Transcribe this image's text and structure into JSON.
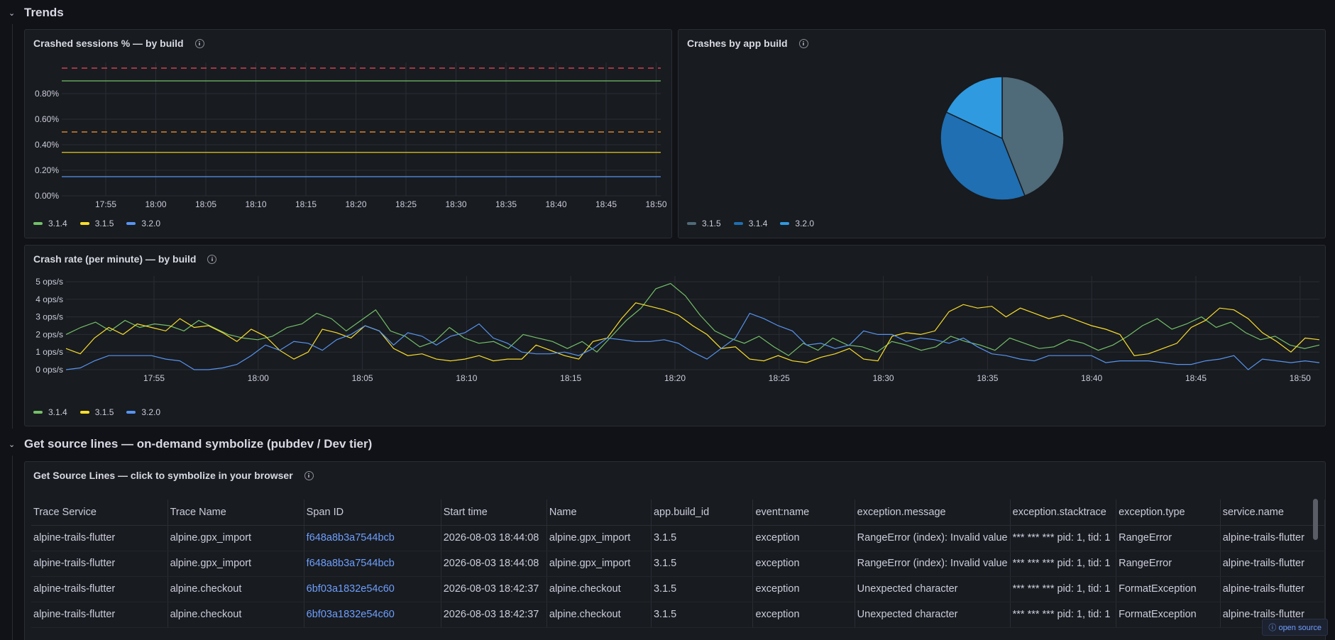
{
  "rows": [
    {
      "title": "Trends"
    },
    {
      "title": "Get source lines — on-demand symbolize (pubdev / Dev tier)"
    }
  ],
  "panels": {
    "crashed_sessions": {
      "title": "Crashed sessions % — by build",
      "legend": [
        {
          "name": "3.1.4",
          "color": "#73bf69"
        },
        {
          "name": "3.1.5",
          "color": "#fade2a"
        },
        {
          "name": "3.2.0",
          "color": "#5794f2"
        }
      ]
    },
    "crashes_by_build": {
      "title": "Crashes by app build",
      "legend": [
        {
          "name": "3.1.5",
          "color": "#4f6a78"
        },
        {
          "name": "3.1.4",
          "color": "#1f6fb2"
        },
        {
          "name": "3.2.0",
          "color": "#2f9ae0"
        }
      ]
    },
    "crash_rate": {
      "title": "Crash rate (per minute) — by build",
      "legend": [
        {
          "name": "3.1.4",
          "color": "#73bf69"
        },
        {
          "name": "3.1.5",
          "color": "#fade2a"
        },
        {
          "name": "3.2.0",
          "color": "#5794f2"
        }
      ]
    },
    "source_lines": {
      "title": "Get Source Lines — click to symbolize in your browser",
      "columns": [
        "Trace Service",
        "Trace Name",
        "Span ID",
        "Start time",
        "Name",
        "app.build_id",
        "event:name",
        "exception.message",
        "exception.stacktrace",
        "exception.type",
        "service.name"
      ],
      "rows": [
        [
          "alpine-trails-flutter",
          "alpine.gpx_import",
          "f648a8b3a7544bcb",
          "2026-08-03 18:44:08",
          "alpine.gpx_import",
          "3.1.5",
          "exception",
          "RangeError (index): Invalid value",
          "*** *** *** pid: 1, tid: 1",
          "RangeError",
          "alpine-trails-flutter"
        ],
        [
          "alpine-trails-flutter",
          "alpine.gpx_import",
          "f648a8b3a7544bcb",
          "2026-08-03 18:44:08",
          "alpine.gpx_import",
          "3.1.5",
          "exception",
          "RangeError (index): Invalid value",
          "*** *** *** pid: 1, tid: 1",
          "RangeError",
          "alpine-trails-flutter"
        ],
        [
          "alpine-trails-flutter",
          "alpine.checkout",
          "6bf03a1832e54c60",
          "2026-08-03 18:42:37",
          "alpine.checkout",
          "3.1.5",
          "exception",
          "Unexpected character",
          "*** *** *** pid: 1, tid: 1",
          "FormatException",
          "alpine-trails-flutter"
        ],
        [
          "alpine-trails-flutter",
          "alpine.checkout",
          "6bf03a1832e54c60",
          "2026-08-03 18:42:37",
          "alpine.checkout",
          "3.1.5",
          "exception",
          "Unexpected character",
          "*** *** *** pid: 1, tid: 1",
          "FormatException",
          "alpine-trails-flutter"
        ]
      ]
    }
  },
  "footer": {
    "open_source": "ⓘ open source"
  },
  "chart_data": [
    {
      "type": "line",
      "title": "Crashed sessions % — by build",
      "x_ticks": [
        "17:55",
        "18:00",
        "18:05",
        "18:10",
        "18:15",
        "18:20",
        "18:25",
        "18:30",
        "18:35",
        "18:40",
        "18:45",
        "18:50"
      ],
      "y_ticks": [
        "0.00%",
        "0.20%",
        "0.40%",
        "0.60%",
        "0.80%"
      ],
      "ylim": [
        0,
        1.0
      ],
      "thresholds": [
        {
          "value": 0.5,
          "color": "#ff9830"
        },
        {
          "value": 1.0,
          "color": "#f2495c"
        }
      ],
      "series": [
        {
          "name": "3.1.4",
          "color": "#73bf69",
          "values": [
            0.9,
            0.9
          ]
        },
        {
          "name": "3.1.5",
          "color": "#fade2a",
          "values": [
            0.34,
            0.34
          ]
        },
        {
          "name": "3.2.0",
          "color": "#5794f2",
          "values": [
            0.15,
            0.15
          ]
        }
      ],
      "grid": true,
      "legend": "bottom-left"
    },
    {
      "type": "pie",
      "title": "Crashes by app build",
      "categories": [
        "3.1.5",
        "3.1.4",
        "3.2.0"
      ],
      "values": [
        44,
        38,
        18
      ],
      "colors": [
        "#4f6a78",
        "#1f6fb2",
        "#2f9ae0"
      ],
      "legend": "bottom-left"
    },
    {
      "type": "line",
      "title": "Crash rate (per minute) — by build",
      "x_ticks": [
        "17:55",
        "18:00",
        "18:05",
        "18:10",
        "18:15",
        "18:20",
        "18:25",
        "18:30",
        "18:35",
        "18:40",
        "18:45",
        "18:50"
      ],
      "y_ticks": [
        "0 ops/s",
        "1 ops/s",
        "2 ops/s",
        "3 ops/s",
        "4 ops/s",
        "5 ops/s"
      ],
      "ylim": [
        0,
        5
      ],
      "series": [
        {
          "name": "3.1.4",
          "color": "#73bf69",
          "values": [
            2.0,
            2.4,
            2.7,
            2.2,
            2.8,
            2.4,
            2.6,
            2.5,
            2.2,
            2.8,
            2.4,
            2.0,
            1.8,
            1.7,
            1.9,
            2.4,
            2.6,
            3.2,
            2.9,
            2.2,
            2.8,
            3.4,
            2.2,
            1.9,
            1.3,
            1.6,
            2.4,
            1.8,
            1.5,
            1.6,
            1.2,
            2.0,
            1.8,
            1.6,
            1.2,
            1.6,
            1.0,
            1.9,
            2.8,
            3.5,
            4.6,
            4.9,
            4.2,
            3.1,
            2.2,
            1.8,
            1.5,
            1.9,
            1.3,
            0.8,
            1.5,
            1.1,
            1.8,
            1.4,
            1.3,
            1.0,
            1.6,
            1.4,
            1.1,
            1.3,
            1.9,
            1.6,
            1.4,
            1.1,
            1.8,
            1.5,
            1.2,
            1.3,
            1.7,
            1.5,
            1.1,
            1.4,
            1.9,
            2.5,
            2.9,
            2.3,
            2.6,
            3.0,
            2.4,
            2.7,
            2.1,
            1.7,
            1.9,
            1.4,
            1.2,
            1.4
          ]
        },
        {
          "name": "3.1.5",
          "color": "#fade2a",
          "values": [
            1.2,
            0.9,
            1.8,
            2.4,
            2.0,
            2.6,
            2.4,
            2.2,
            2.9,
            2.4,
            2.5,
            2.1,
            1.6,
            2.3,
            1.9,
            1.1,
            0.6,
            1.0,
            2.3,
            2.1,
            1.8,
            2.5,
            2.2,
            1.2,
            0.8,
            0.9,
            0.6,
            0.5,
            0.6,
            0.8,
            0.5,
            0.6,
            0.6,
            1.4,
            1.1,
            0.8,
            0.6,
            1.6,
            1.8,
            2.9,
            3.8,
            3.6,
            3.4,
            3.1,
            2.5,
            2.0,
            1.2,
            1.3,
            0.6,
            0.5,
            0.8,
            0.5,
            0.4,
            0.7,
            0.9,
            1.2,
            0.6,
            0.5,
            1.9,
            2.1,
            2.0,
            2.2,
            3.3,
            3.7,
            3.5,
            3.6,
            3.0,
            3.5,
            3.2,
            2.9,
            3.1,
            2.8,
            2.5,
            2.3,
            2.0,
            0.8,
            0.9,
            1.2,
            1.5,
            2.4,
            2.8,
            3.5,
            3.4,
            2.9,
            2.1,
            1.6,
            1.0,
            1.8,
            1.7
          ]
        },
        {
          "name": "3.2.0",
          "color": "#5794f2",
          "values": [
            0.0,
            0.1,
            0.5,
            0.8,
            0.8,
            0.8,
            0.8,
            0.6,
            0.5,
            0.0,
            0.0,
            0.1,
            0.3,
            0.8,
            1.4,
            1.1,
            1.6,
            1.5,
            1.1,
            1.7,
            2.0,
            2.5,
            2.2,
            1.4,
            2.1,
            1.9,
            1.4,
            1.9,
            2.1,
            2.6,
            1.8,
            1.5,
            1.0,
            0.9,
            0.9,
            1.0,
            0.8,
            1.2,
            1.8,
            1.7,
            1.6,
            1.6,
            1.7,
            1.5,
            1.0,
            0.6,
            1.2,
            1.8,
            3.2,
            2.9,
            2.5,
            2.2,
            1.4,
            1.5,
            1.2,
            1.4,
            2.2,
            2.0,
            2.0,
            1.6,
            1.8,
            1.7,
            1.5,
            1.8,
            1.3,
            0.9,
            0.8,
            0.6,
            0.5,
            0.8,
            0.8,
            0.8,
            0.8,
            0.4,
            0.5,
            0.5,
            0.5,
            0.4,
            0.3,
            0.3,
            0.5,
            0.6,
            0.8,
            0.0,
            0.6,
            0.5,
            0.4,
            0.5,
            0.4
          ]
        }
      ],
      "grid": true,
      "legend": "bottom-left"
    }
  ]
}
